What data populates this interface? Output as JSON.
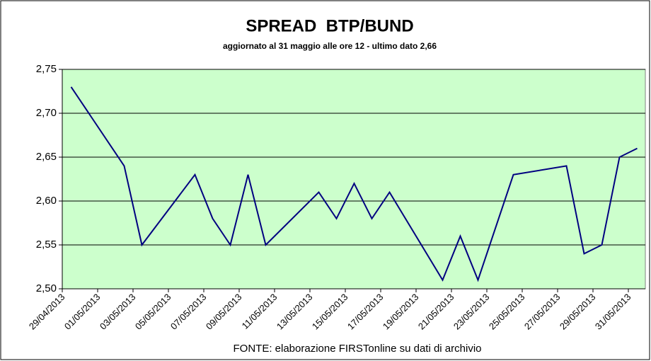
{
  "chart_data": {
    "type": "line",
    "title": "SPREAD  BTP/BUND",
    "subtitle": "aggiornato al 31 maggio alle ore 12 - ultimo dato 2,66",
    "footnote": "FONTE: elaborazione FIRSTonline su dati di archivio",
    "x": [
      "29/04/2013",
      "02/05/2013",
      "03/05/2013",
      "06/05/2013",
      "07/05/2013",
      "08/05/2013",
      "09/05/2013",
      "10/05/2013",
      "13/05/2013",
      "14/05/2013",
      "15/05/2013",
      "16/05/2013",
      "17/05/2013",
      "20/05/2013",
      "21/05/2013",
      "22/05/2013",
      "24/05/2013",
      "27/05/2013",
      "28/05/2013",
      "29/05/2013",
      "30/05/2013",
      "31/05/2013"
    ],
    "series": [
      {
        "color": "#000080",
        "values": [
          2.73,
          2.64,
          2.55,
          2.63,
          2.58,
          2.55,
          2.63,
          2.55,
          2.61,
          2.58,
          2.62,
          2.58,
          2.61,
          2.51,
          2.56,
          2.51,
          2.63,
          2.64,
          2.54,
          2.55,
          2.65,
          2.66
        ]
      }
    ],
    "xticks": [
      "29/04/2013",
      "01/05/2013",
      "03/05/2013",
      "05/05/2013",
      "07/05/2013",
      "09/05/2013",
      "11/05/2013",
      "13/05/2013",
      "15/05/2013",
      "17/05/2013",
      "19/05/2013",
      "21/05/2013",
      "23/05/2013",
      "25/05/2013",
      "27/05/2013",
      "29/05/2013",
      "31/05/2013"
    ],
    "ylim": [
      2.5,
      2.75
    ],
    "yticks": [
      {
        "value": 2.5,
        "label": "2,50"
      },
      {
        "value": 2.55,
        "label": "2,55"
      },
      {
        "value": 2.6,
        "label": "2,60"
      },
      {
        "value": 2.65,
        "label": "2,65"
      },
      {
        "value": 2.7,
        "label": "2,70"
      },
      {
        "value": 2.75,
        "label": "2,75"
      }
    ],
    "grid": true,
    "plot_background": "#ccffcc"
  }
}
